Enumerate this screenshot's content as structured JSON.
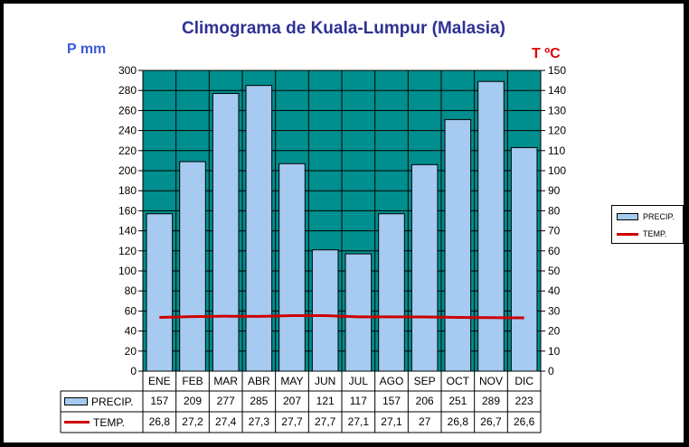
{
  "chart_data": {
    "type": "bar",
    "title": "Climograma de Kuala-Lumpur (Malasia)",
    "categories": [
      "ENE",
      "FEB",
      "MAR",
      "ABR",
      "MAY",
      "JUN",
      "JUL",
      "AGO",
      "SEP",
      "OCT",
      "NOV",
      "DIC"
    ],
    "series": [
      {
        "name": "PRECIP.",
        "type": "bar",
        "axis": "left",
        "values": [
          157,
          209,
          277,
          285,
          207,
          121,
          117,
          157,
          206,
          251,
          289,
          223
        ],
        "display_values": [
          "157",
          "209",
          "277",
          "285",
          "207",
          "121",
          "117",
          "157",
          "206",
          "251",
          "289",
          "223"
        ],
        "color": "#a6caf0"
      },
      {
        "name": "TEMP.",
        "type": "line",
        "axis": "right",
        "values": [
          26.8,
          27.2,
          27.4,
          27.3,
          27.7,
          27.7,
          27.1,
          27.1,
          27,
          26.8,
          26.7,
          26.6
        ],
        "display_values": [
          "26,8",
          "27,2",
          "27,4",
          "27,3",
          "27,7",
          "27,7",
          "27,1",
          "27,1",
          "27",
          "26,8",
          "26,7",
          "26,6"
        ],
        "color": "#cc0000"
      }
    ],
    "ylabel_left": "P mm",
    "ylabel_right": "T ºC",
    "ylim_left": [
      0,
      300
    ],
    "ylim_right": [
      0,
      150
    ],
    "yticks_left": [
      "0",
      "20",
      "40",
      "60",
      "80",
      "100",
      "120",
      "140",
      "160",
      "180",
      "200",
      "220",
      "240",
      "260",
      "280",
      "300"
    ],
    "yticks_right": [
      "0",
      "10",
      "20",
      "30",
      "40",
      "50",
      "60",
      "70",
      "80",
      "90",
      "100",
      "110",
      "120",
      "130",
      "140",
      "150"
    ],
    "plot_background": "#008e8e",
    "grid": true,
    "legend_position": "right",
    "data_table": true
  }
}
